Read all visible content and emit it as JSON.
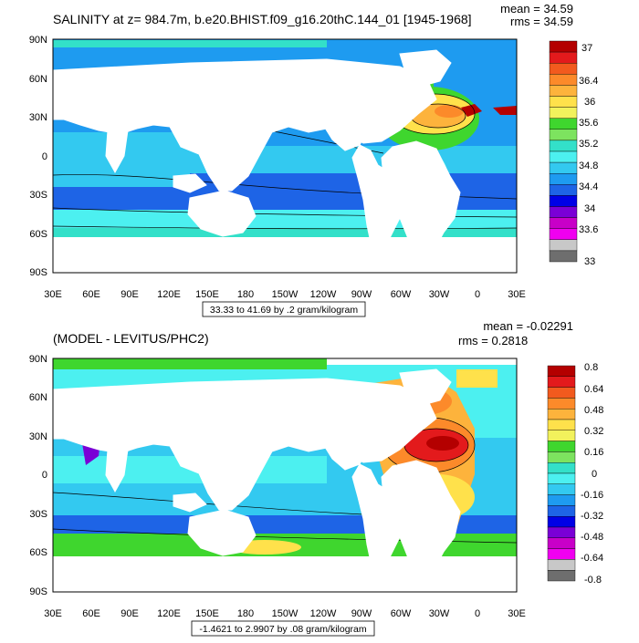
{
  "top_panel": {
    "title": "SALINITY at z= 984.7m, b.e20.BHIST.f09_g16.20thC.144_01 [1945-1968]",
    "mean": "mean = 34.59",
    "rms": "rms = 34.59",
    "range_label": "33.33 to 41.69 by .2 gram/kilogram",
    "lat_labels": [
      "90N",
      "60N",
      "30N",
      "0",
      "30S",
      "60S",
      "90S"
    ],
    "lon_labels": [
      "30E",
      "60E",
      "90E",
      "120E",
      "150E",
      "180",
      "150W",
      "120W",
      "90W",
      "60W",
      "30W",
      "0",
      "30E"
    ],
    "colorbar": {
      "labels": [
        "37",
        "36.4",
        "36",
        "35.6",
        "35.2",
        "34.8",
        "34.4",
        "34",
        "33.6",
        "33"
      ],
      "colors": [
        "#b40000",
        "#e31a1c",
        "#f25a1e",
        "#fc8a2a",
        "#fdb33c",
        "#ffe14b",
        "#f2f25c",
        "#3fd62e",
        "#7de35f",
        "#33e0c9",
        "#4cf0f0",
        "#33c9f0",
        "#1e9bf0",
        "#1e64e6",
        "#0000e6",
        "#7a00d6",
        "#c800c8",
        "#f000f0",
        "#c8c8c8",
        "#6e6e6e"
      ]
    }
  },
  "bottom_panel": {
    "title": "(MODEL - LEVITUS/PHC2)",
    "mean": "mean = -0.02291",
    "rms": "rms = 0.2818",
    "range_label": "-1.4621 to 2.9907 by .08 gram/kilogram",
    "lat_labels": [
      "90N",
      "60N",
      "30N",
      "0",
      "30S",
      "60S",
      "90S"
    ],
    "lon_labels": [
      "30E",
      "60E",
      "90E",
      "120E",
      "150E",
      "180",
      "150W",
      "120W",
      "90W",
      "60W",
      "30W",
      "0",
      "30E"
    ],
    "colorbar": {
      "labels": [
        "0.8",
        "0.64",
        "0.48",
        "0.32",
        "0.16",
        "0",
        "-0.16",
        "-0.32",
        "-0.48",
        "-0.64",
        "-0.8"
      ],
      "colors": [
        "#b40000",
        "#e31a1c",
        "#f25a1e",
        "#fc8a2a",
        "#fdb33c",
        "#ffe14b",
        "#f2f25c",
        "#3fd62e",
        "#7de35f",
        "#33e0c9",
        "#4cf0f0",
        "#33c9f0",
        "#1e9bf0",
        "#1e64e6",
        "#0000e6",
        "#7a00d6",
        "#c800c8",
        "#f000f0",
        "#c8c8c8",
        "#6e6e6e"
      ]
    }
  }
}
